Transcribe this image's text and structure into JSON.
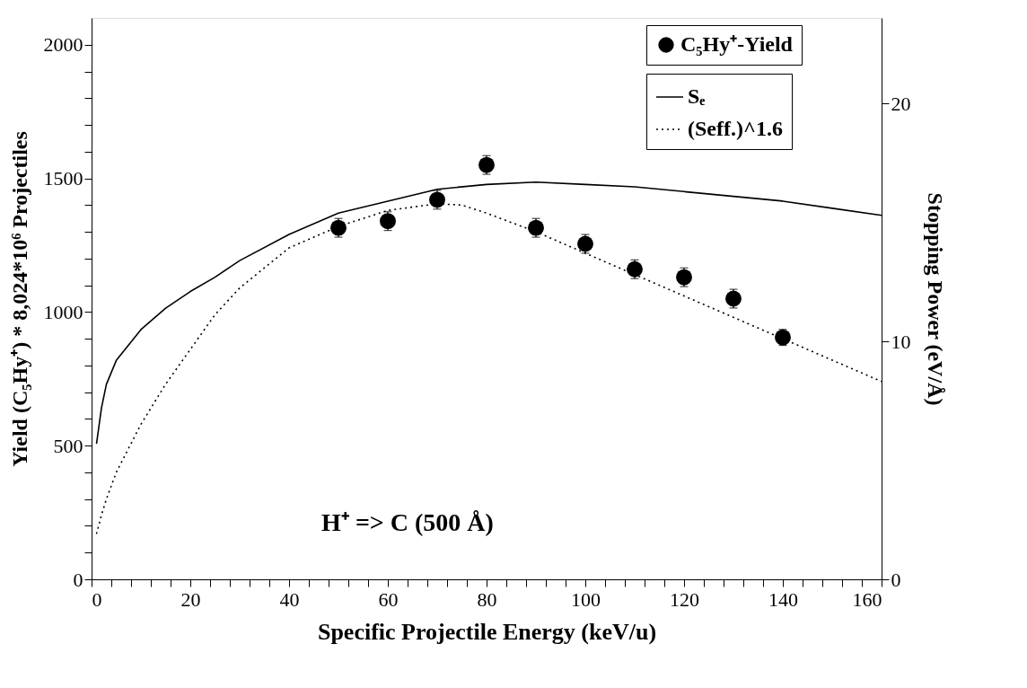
{
  "chart_data": {
    "type": "scatter",
    "xlabel": "Specific Projectile Energy (keV/u)",
    "ylabel": "Yield (C₅Hy⁺) * 8,024*10⁶ Projectiles",
    "y2label": "Stopping Power (eV/Å)",
    "annotations": [
      "H⁺  => C (500 Å)"
    ],
    "xlim": [
      0,
      160
    ],
    "xticks": [
      0,
      {
        "value": 4,
        "label": null
      },
      {
        "value": 8,
        "label": null
      },
      {
        "value": 12,
        "label": null
      },
      {
        "value": 16,
        "label": null
      },
      20,
      {
        "value": 24,
        "label": null
      },
      {
        "value": 28,
        "label": null
      },
      {
        "value": 32,
        "label": null
      },
      {
        "value": 36,
        "label": null
      },
      40,
      {
        "value": 44,
        "label": null
      },
      {
        "value": 48,
        "label": null
      },
      {
        "value": 52,
        "label": null
      },
      {
        "value": 56,
        "label": null
      },
      60,
      {
        "value": 64,
        "label": null
      },
      {
        "value": 68,
        "label": null
      },
      {
        "value": 72,
        "label": null
      },
      {
        "value": 76,
        "label": null
      },
      80,
      {
        "value": 84,
        "label": null
      },
      {
        "value": 88,
        "label": null
      },
      {
        "value": 92,
        "label": null
      },
      {
        "value": 96,
        "label": null
      },
      100,
      {
        "value": 104,
        "label": null
      },
      {
        "value": 108,
        "label": null
      },
      {
        "value": 112,
        "label": null
      },
      {
        "value": 116,
        "label": null
      },
      120,
      {
        "value": 124,
        "label": null
      },
      {
        "value": 128,
        "label": null
      },
      {
        "value": 132,
        "label": null
      },
      {
        "value": 136,
        "label": null
      },
      140,
      {
        "value": 144,
        "label": null
      },
      {
        "value": 148,
        "label": null
      },
      {
        "value": 152,
        "label": null
      },
      {
        "value": 156,
        "label": null
      },
      160
    ],
    "ylim": [
      0,
      2100
    ],
    "yticks": [
      0,
      {
        "value": 100,
        "label": null
      },
      {
        "value": 200,
        "label": null
      },
      {
        "value": 300,
        "label": null
      },
      {
        "value": 400,
        "label": null
      },
      500,
      {
        "value": 600,
        "label": null
      },
      {
        "value": 700,
        "label": null
      },
      {
        "value": 800,
        "label": null
      },
      {
        "value": 900,
        "label": null
      },
      1000,
      {
        "value": 1100,
        "label": null
      },
      {
        "value": 1200,
        "label": null
      },
      {
        "value": 1300,
        "label": null
      },
      {
        "value": 1400,
        "label": null
      },
      1500,
      {
        "value": 1600,
        "label": null
      },
      {
        "value": 1700,
        "label": null
      },
      {
        "value": 1800,
        "label": null
      },
      {
        "value": 1900,
        "label": null
      },
      2000
    ],
    "y2lim": [
      0,
      23.6
    ],
    "y2ticks": [
      0,
      10,
      20
    ],
    "legend": "top right",
    "grid": false,
    "series": [
      {
        "name": "C₅Hy⁺-Yield",
        "marker": "circle",
        "color": "#000000",
        "x": [
          50,
          60,
          70,
          80,
          90,
          100,
          110,
          120,
          130,
          140
        ],
        "values": [
          1315,
          1340,
          1420,
          1550,
          1315,
          1255,
          1160,
          1130,
          1050,
          905
        ],
        "errors": [
          35,
          35,
          35,
          35,
          35,
          35,
          35,
          35,
          35,
          30
        ]
      },
      {
        "name": "Sₑ",
        "type": "line",
        "line_style": "solid",
        "axis": "y2",
        "color": "#000000",
        "x": [
          1,
          2,
          3,
          5,
          10,
          15,
          20,
          25,
          30,
          40,
          50,
          60,
          70,
          80,
          90,
          100,
          110,
          120,
          130,
          140,
          150,
          160
        ],
        "values": [
          5.7,
          7.2,
          8.2,
          9.2,
          10.5,
          11.4,
          12.1,
          12.7,
          13.4,
          14.5,
          15.4,
          15.9,
          16.4,
          16.6,
          16.7,
          16.6,
          16.5,
          16.3,
          16.1,
          15.9,
          15.6,
          15.3
        ]
      },
      {
        "name": "(Seff.)^1.6",
        "type": "line",
        "line_style": "dotted",
        "color": "#000000",
        "x": [
          1,
          2,
          3,
          5,
          10,
          15,
          20,
          25,
          30,
          40,
          50,
          60,
          70,
          75,
          80,
          90,
          100,
          110,
          120,
          130,
          140,
          150,
          160
        ],
        "values": [
          170,
          240,
          300,
          400,
          580,
          730,
          860,
          990,
          1090,
          1240,
          1320,
          1380,
          1405,
          1400,
          1370,
          1300,
          1220,
          1140,
          1060,
          980,
          900,
          820,
          740
        ]
      }
    ]
  }
}
